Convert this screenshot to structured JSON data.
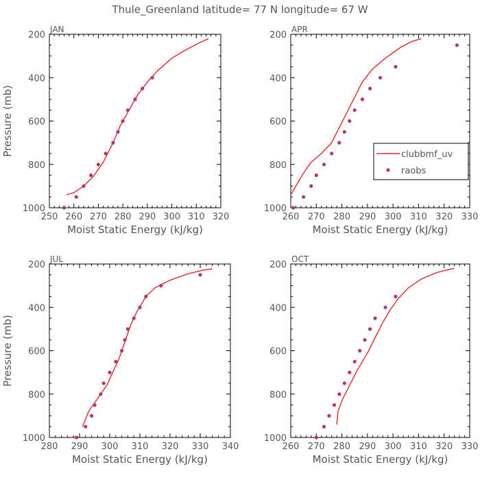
{
  "figure": {
    "title": "Thule_Greenland  latitude= 77 N longitude= 67 W"
  },
  "colors": {
    "model_line": "#e8242a",
    "obs_points": "#b8336a",
    "axes": "#000000",
    "text": "#555555"
  },
  "legend": {
    "panel": "APR",
    "model": "clubbmf_uv",
    "obs": "raobs"
  },
  "chart_data": [
    {
      "type": "line",
      "panel": "JAN",
      "xlabel": "Moist Static Energy (kJ/kg)",
      "ylabel": "Pressure (mb)",
      "xlim": [
        250,
        320
      ],
      "ylim": [
        1000,
        200
      ],
      "y_inverted": true,
      "x_ticks": [
        250,
        260,
        270,
        280,
        290,
        300,
        310,
        320
      ],
      "y_ticks": [
        200,
        400,
        600,
        800,
        1000
      ],
      "series": [
        {
          "name": "clubbmf_uv",
          "type": "line",
          "points": [
            [
              257,
              940
            ],
            [
              260,
              930
            ],
            [
              264,
              900
            ],
            [
              268,
              855
            ],
            [
              272,
              790
            ],
            [
              276,
              700
            ],
            [
              279,
              620
            ],
            [
              282,
              560
            ],
            [
              286,
              480
            ],
            [
              290,
              420
            ],
            [
              294,
              370
            ],
            [
              300,
              310
            ],
            [
              306,
              270
            ],
            [
              312,
              235
            ],
            [
              315,
              220
            ]
          ]
        },
        {
          "name": "raobs",
          "type": "scatter",
          "points": [
            [
              256,
              1000
            ],
            [
              261,
              950
            ],
            [
              264,
              900
            ],
            [
              267,
              850
            ],
            [
              270,
              800
            ],
            [
              273,
              750
            ],
            [
              276,
              700
            ],
            [
              278,
              650
            ],
            [
              280,
              600
            ],
            [
              282,
              550
            ],
            [
              285,
              500
            ],
            [
              288,
              450
            ],
            [
              292,
              400
            ]
          ]
        }
      ]
    },
    {
      "type": "line",
      "panel": "APR",
      "xlabel": "Moist Static Energy (kJ/kg)",
      "ylabel": "",
      "xlim": [
        260,
        330
      ],
      "ylim": [
        1000,
        200
      ],
      "y_inverted": true,
      "x_ticks": [
        260,
        270,
        280,
        290,
        300,
        310,
        320,
        330
      ],
      "y_ticks": [
        200,
        400,
        600,
        800,
        1000
      ],
      "series": [
        {
          "name": "clubbmf_uv",
          "type": "line",
          "points": [
            [
              260,
              940
            ],
            [
              262,
              900
            ],
            [
              265,
              840
            ],
            [
              268,
              790
            ],
            [
              272,
              750
            ],
            [
              276,
              700
            ],
            [
              279,
              630
            ],
            [
              282,
              560
            ],
            [
              285,
              490
            ],
            [
              288,
              420
            ],
            [
              292,
              360
            ],
            [
              297,
              310
            ],
            [
              303,
              260
            ],
            [
              307,
              235
            ],
            [
              311,
              220
            ]
          ]
        },
        {
          "name": "raobs",
          "type": "scatter",
          "points": [
            [
              261,
              1000
            ],
            [
              265,
              950
            ],
            [
              268,
              900
            ],
            [
              270,
              850
            ],
            [
              273,
              800
            ],
            [
              276,
              750
            ],
            [
              279,
              700
            ],
            [
              281,
              650
            ],
            [
              283,
              600
            ],
            [
              285,
              550
            ],
            [
              288,
              500
            ],
            [
              291,
              450
            ],
            [
              295,
              400
            ],
            [
              301,
              350
            ],
            [
              325,
              250
            ]
          ]
        }
      ]
    },
    {
      "type": "line",
      "panel": "JUL",
      "xlabel": "Moist Static Energy (kJ/kg)",
      "ylabel": "Pressure (mb)",
      "xlim": [
        280,
        340
      ],
      "ylim": [
        1000,
        200
      ],
      "y_inverted": true,
      "x_ticks": [
        280,
        290,
        300,
        310,
        320,
        330,
        340
      ],
      "y_ticks": [
        200,
        400,
        600,
        800,
        1000
      ],
      "series": [
        {
          "name": "clubbmf_uv",
          "type": "line",
          "points": [
            [
              291,
              950
            ],
            [
              293,
              880
            ],
            [
              296,
              820
            ],
            [
              299,
              760
            ],
            [
              301,
              700
            ],
            [
              303,
              640
            ],
            [
              305,
              560
            ],
            [
              307,
              480
            ],
            [
              309,
              420
            ],
            [
              312,
              350
            ],
            [
              315,
              310
            ],
            [
              320,
              275
            ],
            [
              326,
              245
            ],
            [
              331,
              228
            ],
            [
              334,
              222
            ]
          ]
        },
        {
          "name": "raobs",
          "type": "scatter",
          "points": [
            [
              289,
              1000
            ],
            [
              292,
              950
            ],
            [
              294,
              900
            ],
            [
              295,
              850
            ],
            [
              297,
              800
            ],
            [
              298,
              750
            ],
            [
              300,
              700
            ],
            [
              302,
              650
            ],
            [
              304,
              600
            ],
            [
              305,
              550
            ],
            [
              306,
              500
            ],
            [
              308,
              450
            ],
            [
              310,
              400
            ],
            [
              312,
              350
            ],
            [
              317,
              300
            ],
            [
              330,
              250
            ]
          ]
        }
      ]
    },
    {
      "type": "line",
      "panel": "OCT",
      "xlabel": "Moist Static Energy (kJ/kg)",
      "ylabel": "",
      "xlim": [
        260,
        330
      ],
      "ylim": [
        1000,
        200
      ],
      "y_inverted": true,
      "x_ticks": [
        260,
        270,
        280,
        290,
        300,
        310,
        320,
        330
      ],
      "y_ticks": [
        200,
        400,
        600,
        800,
        1000
      ],
      "series": [
        {
          "name": "clubbmf_uv",
          "type": "line",
          "points": [
            [
              278,
              940
            ],
            [
              278.5,
              880
            ],
            [
              280,
              830
            ],
            [
              283,
              760
            ],
            [
              286,
              690
            ],
            [
              290,
              610
            ],
            [
              293,
              540
            ],
            [
              296,
              470
            ],
            [
              299,
              410
            ],
            [
              302,
              360
            ],
            [
              306,
              310
            ],
            [
              311,
              270
            ],
            [
              317,
              240
            ],
            [
              322,
              225
            ],
            [
              324,
              220
            ]
          ]
        },
        {
          "name": "raobs",
          "type": "scatter",
          "points": [
            [
              270,
              1000
            ],
            [
              273,
              950
            ],
            [
              275,
              900
            ],
            [
              277,
              850
            ],
            [
              279,
              800
            ],
            [
              281,
              750
            ],
            [
              283,
              700
            ],
            [
              285,
              650
            ],
            [
              287,
              600
            ],
            [
              289,
              550
            ],
            [
              291,
              500
            ],
            [
              293,
              450
            ],
            [
              297,
              400
            ],
            [
              301,
              350
            ]
          ]
        }
      ]
    }
  ]
}
